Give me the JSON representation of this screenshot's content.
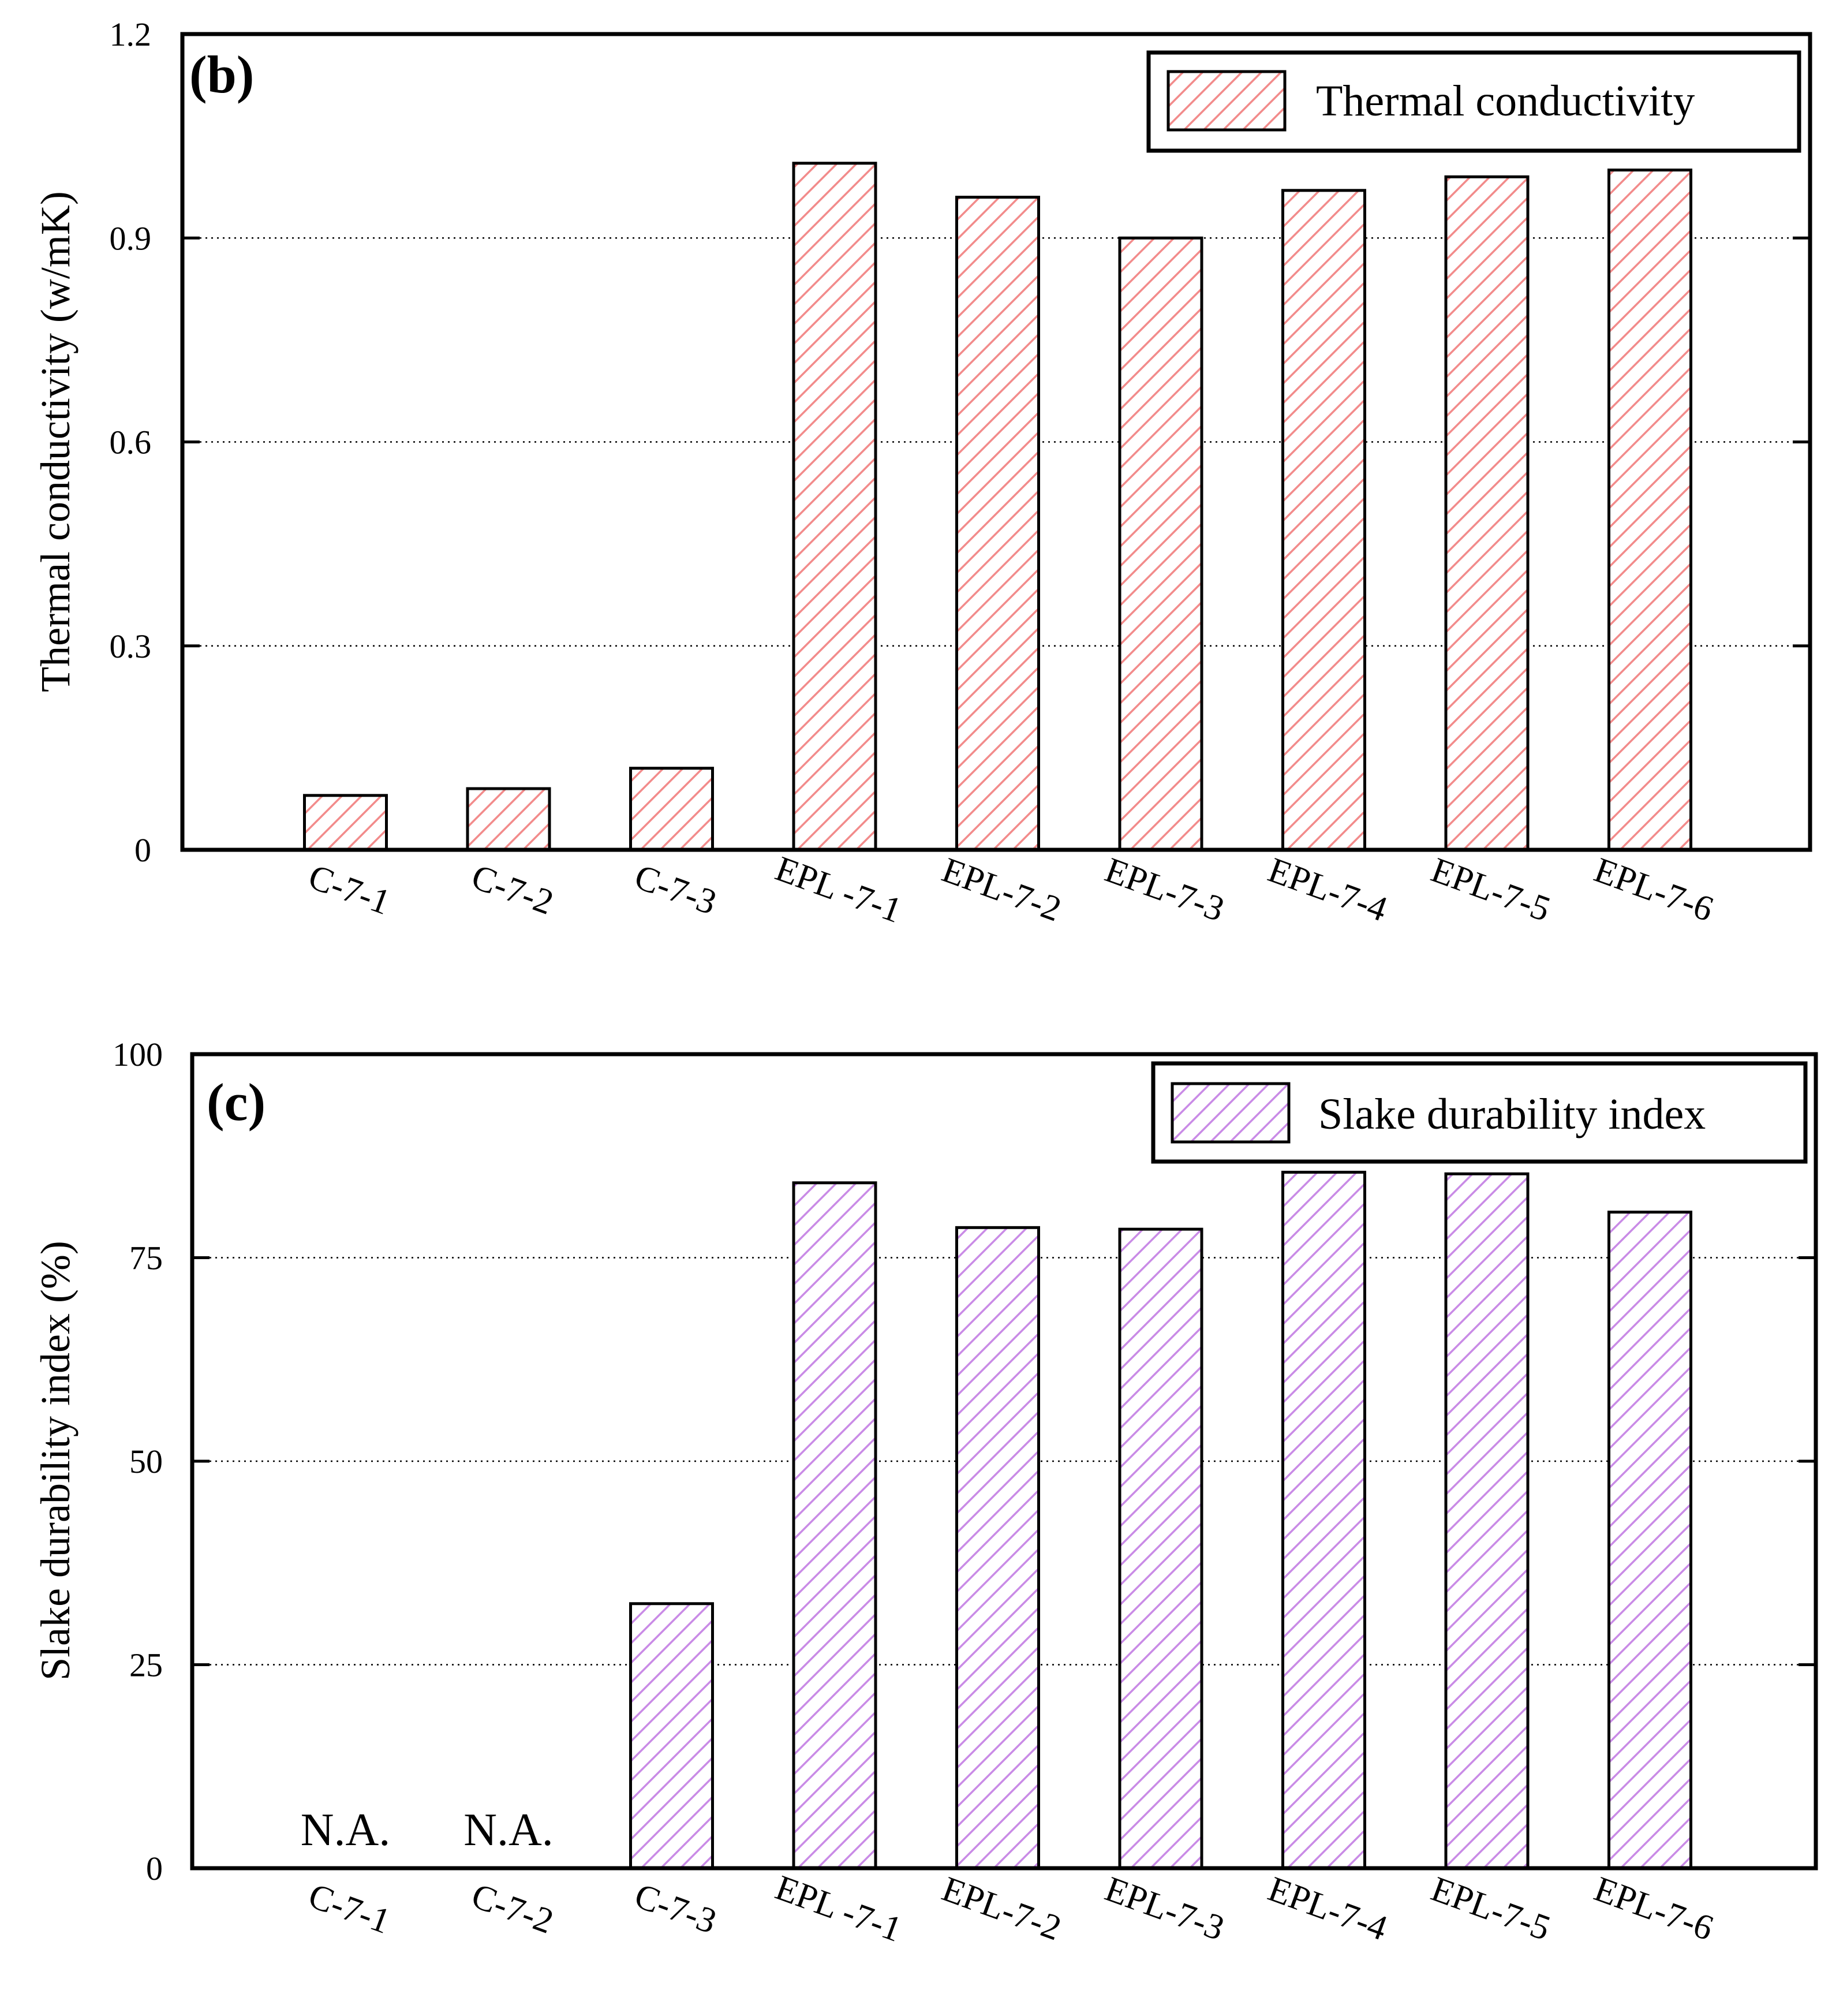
{
  "chart_data": [
    {
      "type": "bar",
      "panel_label": "(b)",
      "title": "",
      "xlabel": "",
      "ylabel": "Thermal conductivity (w/mK)",
      "ylim": [
        0,
        1.2
      ],
      "yticks": [
        0,
        0.3,
        0.6,
        0.9,
        1.2
      ],
      "ytick_labels": [
        "0",
        "0.3",
        "0.6",
        "0.9",
        "1.2"
      ],
      "grid": "horizontal dotted",
      "legend": "top-right",
      "categories": [
        "C-7-1",
        "C-7-2",
        "C-7-3",
        "EPL -7-1",
        "EPL-7-2",
        "EPL-7-3",
        "EPL-7-4",
        "EPL-7-5",
        "EPL-7-6"
      ],
      "series": [
        {
          "name": "Thermal conductivity",
          "color": "#f28b8b",
          "pattern": "diagonal-hatch",
          "values": [
            0.08,
            0.09,
            0.12,
            1.01,
            0.96,
            0.9,
            0.97,
            0.99,
            1.0
          ]
        }
      ],
      "annotations": []
    },
    {
      "type": "bar",
      "panel_label": "(c)",
      "title": "",
      "xlabel": "",
      "ylabel": "Slake durability index (%)",
      "ylim": [
        0,
        100
      ],
      "yticks": [
        0,
        25,
        50,
        75,
        100
      ],
      "ytick_labels": [
        "0",
        "25",
        "50",
        "75",
        "100"
      ],
      "grid": "horizontal dotted",
      "legend": "top-right",
      "categories": [
        "C-7-1",
        "C-7-2",
        "C-7-3",
        "EPL -7-1",
        "EPL-7-2",
        "EPL-7-3",
        "EPL-7-4",
        "EPL-7-5",
        "EPL-7-6"
      ],
      "series": [
        {
          "name": "Slake durability index",
          "color": "#c98be6",
          "pattern": "diagonal-hatch",
          "values": [
            null,
            null,
            32.5,
            84.2,
            78.7,
            78.5,
            85.5,
            85.3,
            80.6
          ]
        }
      ],
      "annotations": [
        {
          "category_index": 0,
          "text": "N.A."
        },
        {
          "category_index": 1,
          "text": "N.A."
        }
      ]
    }
  ]
}
